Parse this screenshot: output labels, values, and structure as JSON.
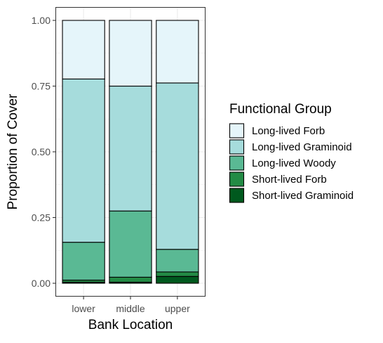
{
  "chart_data": {
    "type": "bar",
    "stacked": true,
    "xlabel": "Bank Location",
    "ylabel": "Proportion of Cover",
    "ylim": [
      0,
      1.05
    ],
    "yticks": [
      0,
      0.25,
      0.5,
      0.75,
      1.0
    ],
    "ytick_labels": [
      "0.00",
      "0.25",
      "0.50",
      "0.75",
      "1.00"
    ],
    "categories": [
      "lower",
      "middle",
      "upper"
    ],
    "grid": true,
    "legend": {
      "title": "Functional Group",
      "position": "right"
    },
    "series": [
      {
        "name": "Short-lived Graminoid",
        "color": "#00591e",
        "values": [
          0.004,
          0.004,
          0.026
        ]
      },
      {
        "name": "Short-lived Forb",
        "color": "#238b45",
        "values": [
          0.008,
          0.019,
          0.017
        ]
      },
      {
        "name": "Long-lived Woody",
        "color": "#5ab994",
        "values": [
          0.144,
          0.252,
          0.086
        ]
      },
      {
        "name": "Long-lived Graminoid",
        "color": "#a6dcdc",
        "values": [
          0.621,
          0.475,
          0.633
        ]
      },
      {
        "name": "Long-lived Forb",
        "color": "#e5f5fa",
        "values": [
          0.223,
          0.25,
          0.238
        ]
      }
    ]
  }
}
